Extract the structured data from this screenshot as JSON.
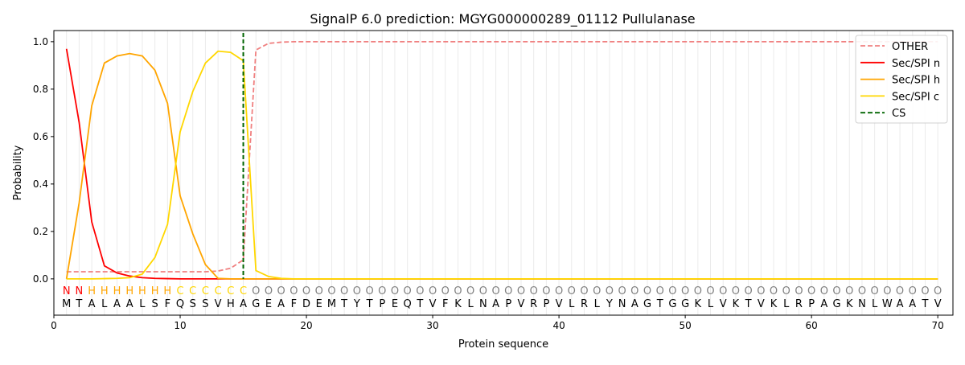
{
  "chart_data": {
    "type": "line",
    "title": "SignalP 6.0 prediction: MGYG000000289_01112 Pullulanase",
    "xlabel": "Protein sequence",
    "ylabel": "Probability",
    "xlim": [
      0,
      71.2
    ],
    "ylim": [
      -0.153,
      1.047
    ],
    "xticks": [
      0,
      10,
      20,
      30,
      40,
      50,
      60,
      70
    ],
    "yticks": [
      "0.0",
      "0.2",
      "0.4",
      "0.6",
      "0.8",
      "1.0"
    ],
    "grid": "vertical lines at each residue",
    "legend_position": "top-right",
    "x": [
      1,
      2,
      3,
      4,
      5,
      6,
      7,
      8,
      9,
      10,
      11,
      12,
      13,
      14,
      15,
      16,
      17,
      18,
      19,
      20,
      21,
      22,
      23,
      24,
      25,
      26,
      27,
      28,
      29,
      30,
      31,
      32,
      33,
      34,
      35,
      36,
      37,
      38,
      39,
      40,
      41,
      42,
      43,
      44,
      45,
      46,
      47,
      48,
      49,
      50,
      51,
      52,
      53,
      54,
      55,
      56,
      57,
      58,
      59,
      60,
      61,
      62,
      63,
      64,
      65,
      66,
      67,
      68,
      69,
      70
    ],
    "sequence": [
      "M",
      "T",
      "A",
      "L",
      "A",
      "A",
      "L",
      "S",
      "F",
      "Q",
      "S",
      "S",
      "V",
      "H",
      "A",
      "G",
      "E",
      "A",
      "F",
      "D",
      "E",
      "M",
      "T",
      "Y",
      "T",
      "P",
      "E",
      "Q",
      "T",
      "V",
      "F",
      "K",
      "L",
      "N",
      "A",
      "P",
      "V",
      "R",
      "P",
      "V",
      "L",
      "R",
      "L",
      "Y",
      "N",
      "A",
      "G",
      "T",
      "G",
      "G",
      "K",
      "L",
      "V",
      "K",
      "T",
      "V",
      "K",
      "L",
      "R",
      "P",
      "A",
      "G",
      "K",
      "N",
      "L",
      "W",
      "A",
      "A",
      "T",
      "V"
    ],
    "labels": [
      "N",
      "N",
      "H",
      "H",
      "H",
      "H",
      "H",
      "H",
      "H",
      "C",
      "C",
      "C",
      "C",
      "C",
      "C",
      "O",
      "O",
      "O",
      "O",
      "O",
      "O",
      "O",
      "O",
      "O",
      "O",
      "O",
      "O",
      "O",
      "O",
      "O",
      "O",
      "O",
      "O",
      "O",
      "O",
      "O",
      "O",
      "O",
      "O",
      "O",
      "O",
      "O",
      "O",
      "O",
      "O",
      "O",
      "O",
      "O",
      "O",
      "O",
      "O",
      "O",
      "O",
      "O",
      "O",
      "O",
      "O",
      "O",
      "O",
      "O",
      "O",
      "O",
      "O",
      "O",
      "O",
      "O",
      "O",
      "O",
      "O",
      "O"
    ],
    "label_colors": {
      "N": "#ff0000",
      "H": "#ffa500",
      "C": "#ffd700",
      "O": "#808080"
    },
    "series": [
      {
        "name": "OTHER",
        "color": "#f08080",
        "dash": true,
        "values": [
          0.03,
          0.03,
          0.03,
          0.03,
          0.03,
          0.03,
          0.03,
          0.03,
          0.03,
          0.03,
          0.03,
          0.03,
          0.033,
          0.045,
          0.08,
          0.965,
          0.993,
          0.998,
          1,
          1,
          1,
          1,
          1,
          1,
          1,
          1,
          1,
          1,
          1,
          1,
          1,
          1,
          1,
          1,
          1,
          1,
          1,
          1,
          1,
          1,
          1,
          1,
          1,
          1,
          1,
          1,
          1,
          1,
          1,
          1,
          1,
          1,
          1,
          1,
          1,
          1,
          1,
          1,
          1,
          1,
          1,
          1,
          1,
          1,
          1,
          1,
          1,
          1,
          1,
          1
        ]
      },
      {
        "name": "Sec/SPI n",
        "color": "#ff0000",
        "values": [
          0.97,
          0.66,
          0.24,
          0.055,
          0.025,
          0.012,
          0.005,
          0.002,
          0.001,
          0,
          0,
          0,
          0,
          0,
          0,
          0,
          0,
          0,
          0,
          0,
          0,
          0,
          0,
          0,
          0,
          0,
          0,
          0,
          0,
          0,
          0,
          0,
          0,
          0,
          0,
          0,
          0,
          0,
          0,
          0,
          0,
          0,
          0,
          0,
          0,
          0,
          0,
          0,
          0,
          0,
          0,
          0,
          0,
          0,
          0,
          0,
          0,
          0,
          0,
          0,
          0,
          0,
          0,
          0,
          0,
          0,
          0,
          0,
          0,
          0
        ]
      },
      {
        "name": "Sec/SPI h",
        "color": "#ffa500",
        "values": [
          0.0,
          0.32,
          0.73,
          0.91,
          0.94,
          0.95,
          0.94,
          0.88,
          0.74,
          0.35,
          0.19,
          0.06,
          0.002,
          0,
          0,
          0,
          0,
          0,
          0,
          0,
          0,
          0,
          0,
          0,
          0,
          0,
          0,
          0,
          0,
          0,
          0,
          0,
          0,
          0,
          0,
          0,
          0,
          0,
          0,
          0,
          0,
          0,
          0,
          0,
          0,
          0,
          0,
          0,
          0,
          0,
          0,
          0,
          0,
          0,
          0,
          0,
          0,
          0,
          0,
          0,
          0,
          0,
          0,
          0,
          0,
          0,
          0,
          0,
          0,
          0
        ]
      },
      {
        "name": "Sec/SPI c",
        "color": "#ffd700",
        "values": [
          0,
          0,
          0,
          0.001,
          0.002,
          0.005,
          0.02,
          0.09,
          0.23,
          0.62,
          0.79,
          0.91,
          0.96,
          0.955,
          0.92,
          0.035,
          0.01,
          0.002,
          0,
          0,
          0,
          0,
          0,
          0,
          0,
          0,
          0,
          0,
          0,
          0,
          0,
          0,
          0,
          0,
          0,
          0,
          0,
          0,
          0,
          0,
          0,
          0,
          0,
          0,
          0,
          0,
          0,
          0,
          0,
          0,
          0,
          0,
          0,
          0,
          0,
          0,
          0,
          0,
          0,
          0,
          0,
          0,
          0,
          0,
          0,
          0,
          0,
          0,
          0,
          0
        ]
      }
    ],
    "cs": {
      "name": "CS",
      "x": 15,
      "color": "#006400"
    }
  }
}
